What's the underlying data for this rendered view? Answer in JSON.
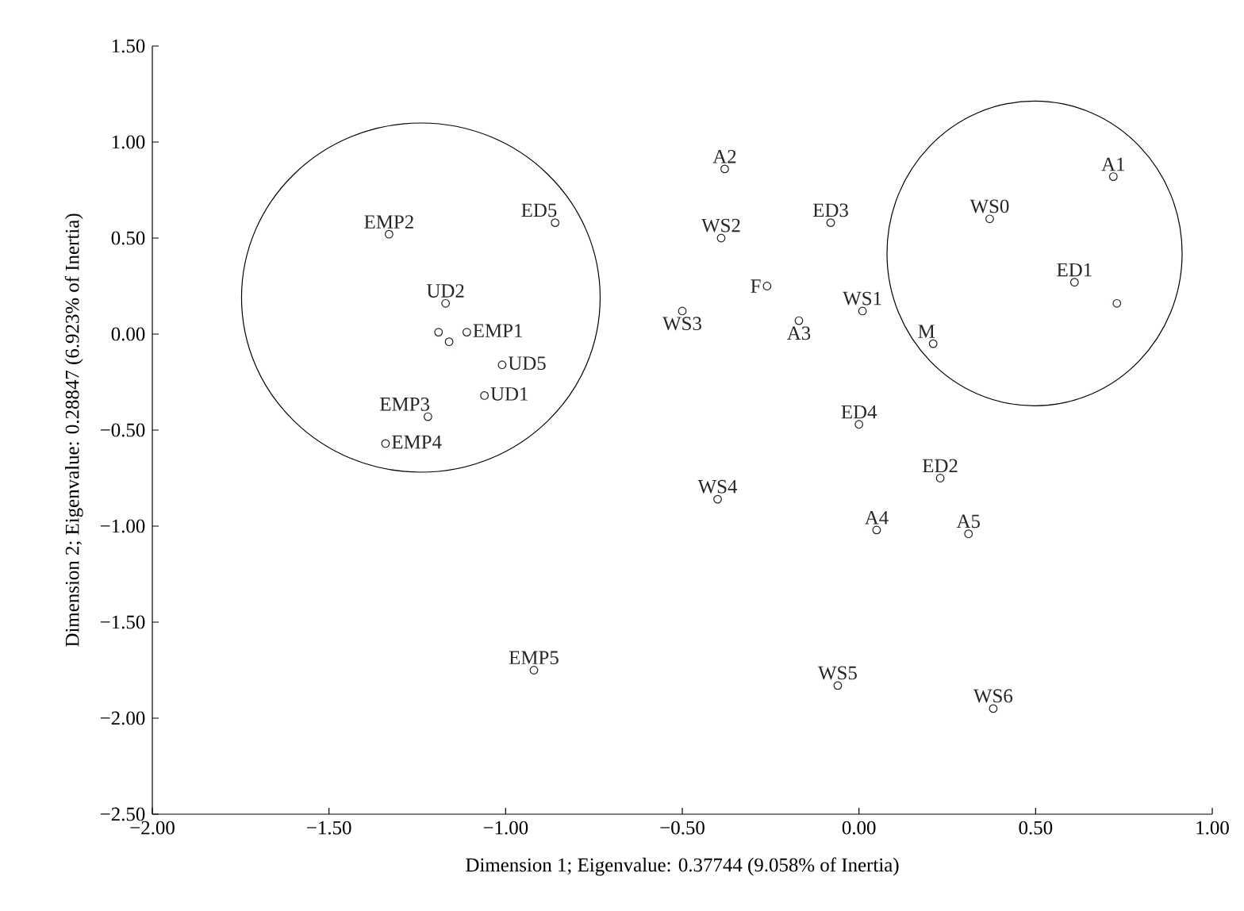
{
  "chart_data": {
    "type": "scatter",
    "xlabel": "Dimension 1; Eigenvalue: 0.37744 (9.058% of Inertia)",
    "ylabel": "Dimension 2; Eigenvalue: 0.28847 (6.923% of Inertia)",
    "xlim": [
      -2.0,
      1.0
    ],
    "ylim": [
      -2.5,
      1.5
    ],
    "xticks": [
      {
        "value": -2.0,
        "label": "−2.00"
      },
      {
        "value": -1.5,
        "label": "−1.50"
      },
      {
        "value": -1.0,
        "label": "−1.00"
      },
      {
        "value": -0.5,
        "label": "−0.50"
      },
      {
        "value": 0.0,
        "label": "0.00"
      },
      {
        "value": 0.5,
        "label": "0.50"
      },
      {
        "value": 1.0,
        "label": "1.00"
      }
    ],
    "yticks": [
      {
        "value": -2.5,
        "label": "−2.50"
      },
      {
        "value": -2.0,
        "label": "−2.00"
      },
      {
        "value": -1.5,
        "label": "−1.50"
      },
      {
        "value": -1.0,
        "label": "−1.00"
      },
      {
        "value": -0.5,
        "label": "−0.50"
      },
      {
        "value": 0.0,
        "label": "0.00"
      },
      {
        "value": 0.5,
        "label": "0.50"
      },
      {
        "value": 1.0,
        "label": "1.00"
      },
      {
        "value": 1.5,
        "label": "1.50"
      }
    ],
    "grid": false,
    "marker": "circle",
    "series": [
      {
        "color": "#231f20",
        "x": [
          -1.33,
          -0.86,
          -1.17,
          -1.11,
          -1.19,
          -1.16,
          -1.01,
          -1.06,
          -1.22,
          -1.34,
          -0.38,
          -0.39,
          -0.08,
          -0.26,
          -0.5,
          -0.17,
          0.01,
          0.21,
          0.0,
          0.23,
          0.72,
          0.37,
          0.61,
          0.73,
          -0.4,
          0.05,
          0.31,
          -0.92,
          -0.06,
          0.38
        ],
        "values": [
          0.52,
          0.58,
          0.16,
          0.01,
          0.01,
          -0.04,
          -0.16,
          -0.32,
          -0.43,
          -0.57,
          0.86,
          0.5,
          0.58,
          0.25,
          0.12,
          0.07,
          0.12,
          -0.05,
          -0.47,
          -0.75,
          0.82,
          0.6,
          0.27,
          0.16,
          -0.86,
          -1.02,
          -1.04,
          -1.75,
          -1.83,
          -1.95
        ]
      }
    ],
    "annotations": [
      {
        "text": "EMP2",
        "x": -1.33,
        "y": 0.52
      },
      {
        "text": "ED5",
        "x": -0.86,
        "y": 0.58
      },
      {
        "text": "UD2",
        "x": -1.17,
        "y": 0.16
      },
      {
        "text": "EMP1",
        "x": -1.11,
        "y": 0.01
      },
      {
        "text": "UD5",
        "x": -1.01,
        "y": -0.16
      },
      {
        "text": "UD1",
        "x": -1.06,
        "y": -0.32
      },
      {
        "text": "EMP3",
        "x": -1.22,
        "y": -0.43
      },
      {
        "text": "EMP4",
        "x": -1.34,
        "y": -0.57
      },
      {
        "text": "A2",
        "x": -0.38,
        "y": 0.86
      },
      {
        "text": "WS2",
        "x": -0.39,
        "y": 0.5
      },
      {
        "text": "ED3",
        "x": -0.08,
        "y": 0.58
      },
      {
        "text": "F",
        "x": -0.26,
        "y": 0.25
      },
      {
        "text": "WS3",
        "x": -0.5,
        "y": 0.12
      },
      {
        "text": "A3",
        "x": -0.17,
        "y": 0.07
      },
      {
        "text": "WS1",
        "x": 0.01,
        "y": 0.12
      },
      {
        "text": "M",
        "x": 0.21,
        "y": -0.05
      },
      {
        "text": "ED4",
        "x": 0.0,
        "y": -0.47
      },
      {
        "text": "ED2",
        "x": 0.23,
        "y": -0.75
      },
      {
        "text": "A1",
        "x": 0.72,
        "y": 0.82
      },
      {
        "text": "WS0",
        "x": 0.37,
        "y": 0.6
      },
      {
        "text": "ED1",
        "x": 0.61,
        "y": 0.27
      },
      {
        "text": "WS4",
        "x": -0.4,
        "y": -0.86
      },
      {
        "text": "A4",
        "x": 0.05,
        "y": -1.02
      },
      {
        "text": "A5",
        "x": 0.31,
        "y": -1.04
      },
      {
        "text": "EMP5",
        "x": -0.92,
        "y": -1.75
      },
      {
        "text": "WS5",
        "x": -0.06,
        "y": -1.83
      },
      {
        "text": "WS6",
        "x": 0.38,
        "y": -1.95
      }
    ]
  }
}
